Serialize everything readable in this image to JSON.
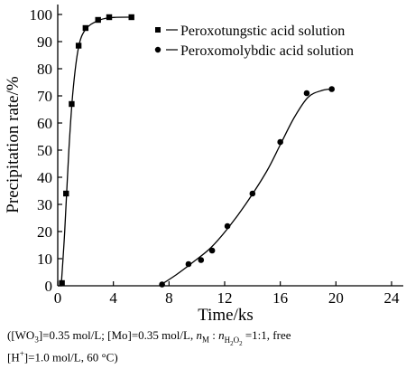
{
  "chart_data": {
    "type": "line",
    "title": "",
    "xlabel": "Time/ks",
    "ylabel": "Precipitation rate/%",
    "xlim": [
      0,
      24
    ],
    "ylim": [
      0,
      100
    ],
    "xticks": [
      "0",
      "4",
      "8",
      "12",
      "16",
      "20",
      "24"
    ],
    "yticks": [
      "0",
      "10",
      "20",
      "30",
      "40",
      "50",
      "60",
      "70",
      "80",
      "90",
      "100"
    ],
    "legend_position": "top-right",
    "series": [
      {
        "name": "Peroxotungstic acid solution",
        "marker": "square",
        "points": [
          [
            0.3,
            1
          ],
          [
            0.6,
            34
          ],
          [
            1.0,
            67
          ],
          [
            1.5,
            88.5
          ],
          [
            2.0,
            95
          ],
          [
            2.9,
            98
          ],
          [
            3.7,
            99
          ],
          [
            5.3,
            99
          ]
        ],
        "curve": [
          [
            0.25,
            0
          ],
          [
            0.5,
            20
          ],
          [
            0.8,
            50
          ],
          [
            1.1,
            72
          ],
          [
            1.5,
            88
          ],
          [
            2.0,
            94.5
          ],
          [
            2.8,
            97.5
          ],
          [
            3.7,
            98.8
          ],
          [
            5.3,
            99
          ]
        ]
      },
      {
        "name": "Peroxomolybdic acid solution",
        "marker": "circle",
        "points": [
          [
            7.5,
            0.5
          ],
          [
            9.4,
            8
          ],
          [
            10.3,
            9.5
          ],
          [
            11.1,
            13
          ],
          [
            12.2,
            22
          ],
          [
            14.0,
            34
          ],
          [
            16.0,
            53
          ],
          [
            17.9,
            71
          ],
          [
            19.7,
            72.5
          ]
        ],
        "curve": [
          [
            7.3,
            0
          ],
          [
            8.5,
            4
          ],
          [
            9.8,
            9
          ],
          [
            11.0,
            14
          ],
          [
            12.2,
            21
          ],
          [
            13.5,
            30
          ],
          [
            15.0,
            42
          ],
          [
            16.0,
            52
          ],
          [
            17.0,
            62
          ],
          [
            18.0,
            69.5
          ],
          [
            19.0,
            72
          ],
          [
            19.7,
            72.5
          ]
        ]
      }
    ]
  },
  "caption": {
    "line1_a": "([WO",
    "line1_a_sub": "3",
    "line1_b": "]=0.35 mol/L;  [Mo]=0.35 mol/L,  ",
    "line1_n1": "n",
    "line1_n1_sub": "M",
    "line1_colon": " : ",
    "line1_n2": "n",
    "line1_n2_sub": "H",
    "line1_n2_sub2": "2",
    "line1_n2_sub3": "O",
    "line1_n2_sub4": "2",
    "line1_c": " =1:1,  free",
    "line2_a": "[H",
    "line2_sup": "+",
    "line2_b": "]=1.0 mol/L, 60 °C)"
  }
}
